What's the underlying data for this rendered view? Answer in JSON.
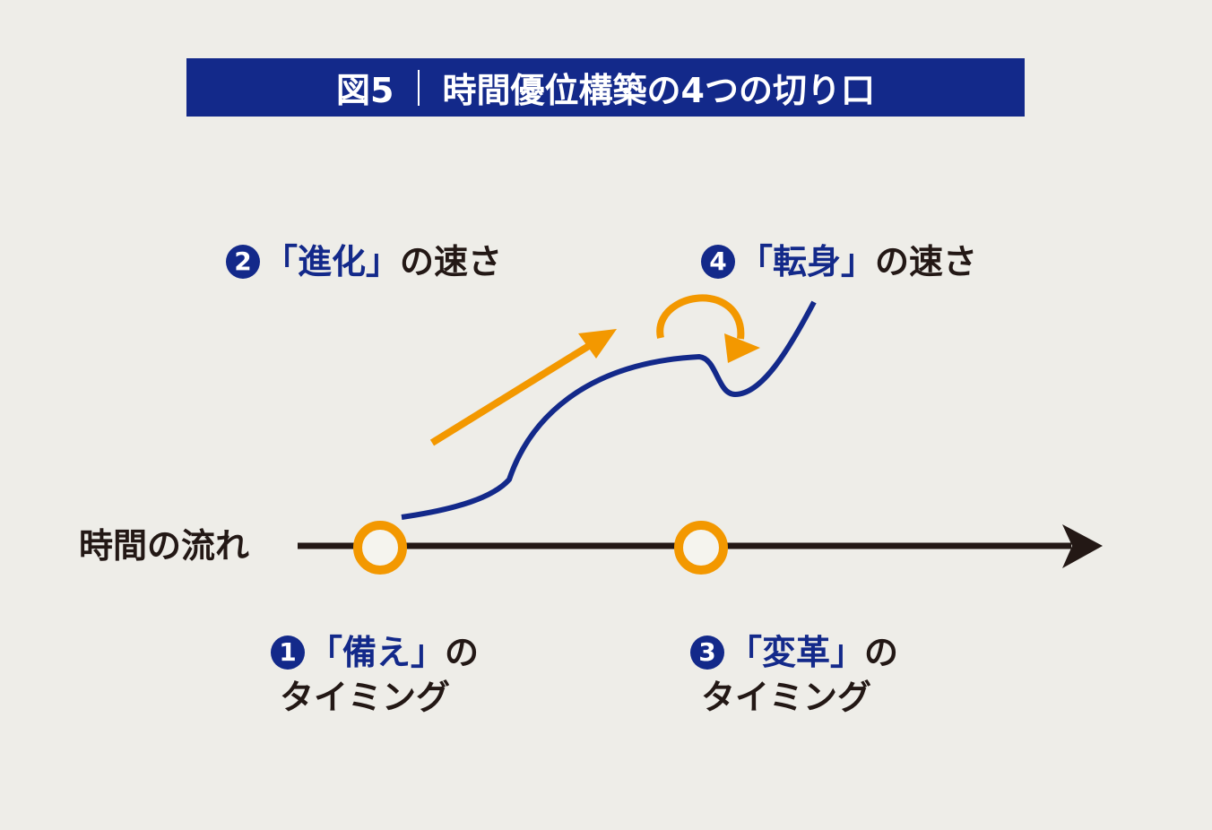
{
  "title": {
    "figure": "図5",
    "text": "時間優位構築の4つの切り口"
  },
  "axis_label": "時間の流れ",
  "labels": [
    {
      "num": "1",
      "keyword": "「備え」",
      "suffix": "の",
      "line2": "タイミング"
    },
    {
      "num": "2",
      "keyword": "「進化」",
      "suffix": "の速さ"
    },
    {
      "num": "3",
      "keyword": "「変革」",
      "suffix": "の",
      "line2": "タイミング"
    },
    {
      "num": "4",
      "keyword": "「転身」",
      "suffix": "の速さ"
    }
  ],
  "colors": {
    "navy": "#13298a",
    "orange": "#f39800",
    "axis": "#231815",
    "background": "#eeede8"
  }
}
